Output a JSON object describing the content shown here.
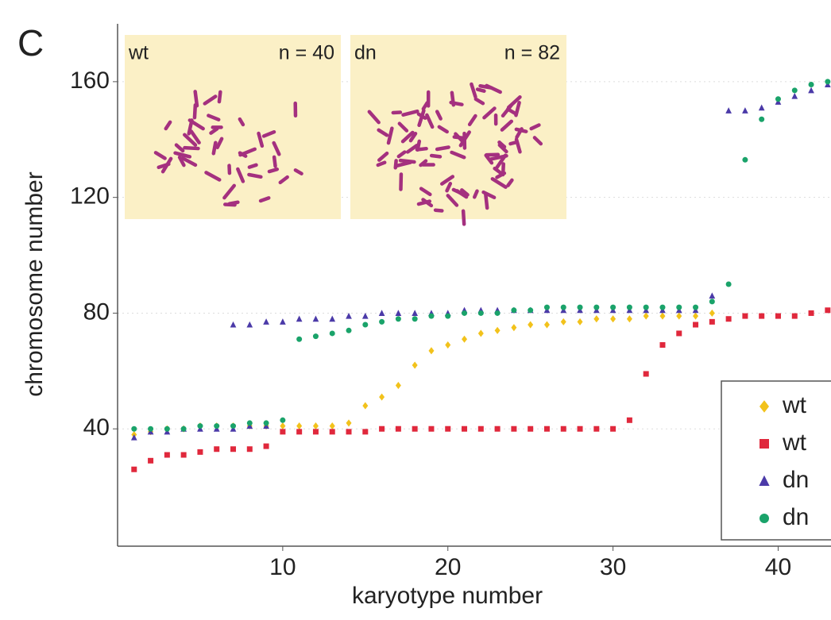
{
  "chart_data": {
    "type": "scatter",
    "panel_label": "C",
    "xlabel": "karyotype number",
    "ylabel": "chromosome number",
    "xlim": [
      0,
      43.2
    ],
    "ylim": [
      0,
      180
    ],
    "xticks": [
      10,
      20,
      30,
      40
    ],
    "yticks": [
      40,
      80,
      120,
      160
    ],
    "grid": true,
    "insets": [
      {
        "label": "wt",
        "n_label": "n = 40"
      },
      {
        "label": "dn",
        "n_label": "n = 82"
      }
    ],
    "series": [
      {
        "name": "wt",
        "color": "#f2c21b",
        "marker": "diamond",
        "x": [
          1,
          2,
          3,
          4,
          5,
          6,
          7,
          8,
          9,
          10,
          11,
          12,
          13,
          14,
          15,
          16,
          17,
          18,
          19,
          20,
          21,
          22,
          23,
          24,
          25,
          26,
          27,
          28,
          29,
          30,
          31,
          32,
          33,
          34,
          35,
          36
        ],
        "values": [
          38,
          39,
          40,
          40,
          41,
          41,
          41,
          41,
          41,
          41,
          41,
          41,
          41,
          42,
          48,
          51,
          55,
          62,
          67,
          69,
          71,
          73,
          74,
          75,
          76,
          76,
          77,
          77,
          78,
          78,
          78,
          79,
          79,
          79,
          79,
          80
        ]
      },
      {
        "name": "wt",
        "color": "#e0283c",
        "marker": "square",
        "x": [
          1,
          2,
          3,
          4,
          5,
          6,
          7,
          8,
          9,
          10,
          11,
          12,
          13,
          14,
          15,
          16,
          17,
          18,
          19,
          20,
          21,
          22,
          23,
          24,
          25,
          26,
          27,
          28,
          29,
          30,
          31,
          32,
          33,
          34,
          35,
          36,
          37,
          38,
          39,
          40,
          41,
          42,
          43
        ],
        "values": [
          26,
          29,
          31,
          31,
          32,
          33,
          33,
          33,
          34,
          39,
          39,
          39,
          39,
          39,
          39,
          40,
          40,
          40,
          40,
          40,
          40,
          40,
          40,
          40,
          40,
          40,
          40,
          40,
          40,
          40,
          43,
          59,
          69,
          73,
          76,
          77,
          78,
          79,
          79,
          79,
          79,
          80,
          81
        ]
      },
      {
        "name": "dn",
        "color": "#4b3aa8",
        "marker": "triangle",
        "x": [
          1,
          2,
          3,
          4,
          5,
          6,
          7,
          8,
          9,
          7,
          8,
          9,
          10,
          11,
          12,
          13,
          14,
          15,
          16,
          17,
          18,
          19,
          20,
          21,
          22,
          23,
          24,
          25,
          26,
          27,
          28,
          29,
          30,
          31,
          32,
          33,
          34,
          35,
          36,
          37,
          38,
          39,
          40,
          41,
          42,
          43
        ],
        "values": [
          37,
          39,
          39,
          40,
          40,
          40,
          40,
          41,
          41,
          76,
          76,
          77,
          77,
          78,
          78,
          78,
          79,
          79,
          80,
          80,
          80,
          80,
          80,
          81,
          81,
          81,
          81,
          81,
          81,
          81,
          81,
          81,
          81,
          81,
          81,
          81,
          81,
          81,
          86,
          150,
          150,
          151,
          153,
          155,
          157,
          159
        ]
      },
      {
        "name": "dn",
        "color": "#1aa36a",
        "marker": "circle",
        "x": [
          1,
          2,
          3,
          4,
          5,
          6,
          7,
          8,
          9,
          10,
          11,
          12,
          13,
          14,
          15,
          16,
          17,
          18,
          19,
          20,
          21,
          22,
          23,
          24,
          25,
          26,
          27,
          28,
          29,
          30,
          31,
          32,
          33,
          34,
          35,
          36,
          37,
          38,
          39,
          40,
          41,
          42,
          43
        ],
        "values": [
          40,
          40,
          40,
          40,
          41,
          41,
          41,
          42,
          42,
          43,
          71,
          72,
          73,
          74,
          76,
          77,
          78,
          78,
          79,
          79,
          80,
          80,
          80,
          81,
          81,
          82,
          82,
          82,
          82,
          82,
          82,
          82,
          82,
          82,
          82,
          84,
          90,
          133,
          147,
          154,
          157,
          159,
          160
        ]
      }
    ]
  }
}
